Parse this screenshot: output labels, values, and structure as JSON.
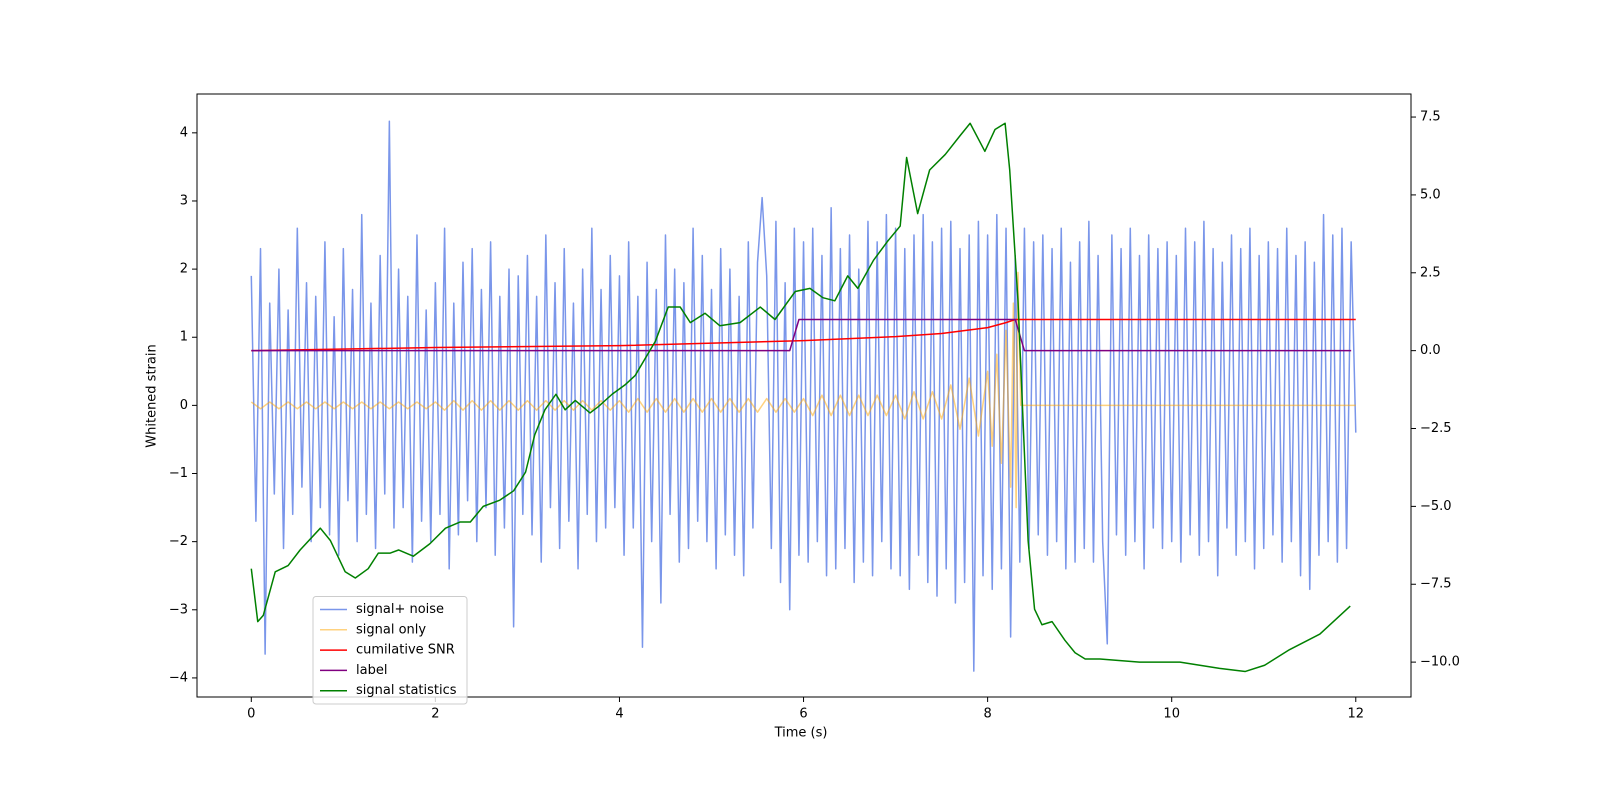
{
  "chart_data": {
    "type": "line",
    "xlabel": "Time (s)",
    "ylabel": "Whitened strain",
    "xlim": [
      -0.59,
      12.6
    ],
    "ylim": [
      -4.28,
      4.57
    ],
    "y2lim": [
      -11.12,
      8.24
    ],
    "xticks": [
      0,
      2,
      4,
      6,
      8,
      10,
      12
    ],
    "yticks": [
      {
        "value": -4,
        "label": "−4"
      },
      {
        "value": -3,
        "label": "−3"
      },
      {
        "value": -2,
        "label": "−2"
      },
      {
        "value": -1,
        "label": "−1"
      },
      0,
      1,
      2,
      3,
      4
    ],
    "y2ticks": [
      {
        "value": -10,
        "label": "−10.0"
      },
      {
        "value": -7.5,
        "label": "−7.5"
      },
      {
        "value": -5,
        "label": "−5.0"
      },
      {
        "value": -2.5,
        "label": "−2.5"
      },
      {
        "value": 0,
        "label": "0.0"
      },
      {
        "value": 2.5,
        "label": "2.5"
      },
      {
        "value": 5,
        "label": "5.0"
      },
      {
        "value": 7.5,
        "label": "7.5"
      }
    ],
    "grid": false,
    "legend": "lower left",
    "series": [
      {
        "name": "signal+ noise",
        "color": "royalblue",
        "opacity": 0.7,
        "axis": "y",
        "x": [
          0,
          0.05,
          0.1,
          0.15,
          0.2,
          0.25,
          0.3,
          0.35,
          0.4,
          0.45,
          0.5,
          0.55,
          0.6,
          0.65,
          0.7,
          0.75,
          0.8,
          0.85,
          0.9,
          0.95,
          1,
          1.05,
          1.1,
          1.15,
          1.2,
          1.25,
          1.3,
          1.35,
          1.4,
          1.45,
          1.5,
          1.55,
          1.6,
          1.65,
          1.7,
          1.75,
          1.8,
          1.85,
          1.9,
          1.95,
          2,
          2.05,
          2.1,
          2.15,
          2.2,
          2.25,
          2.3,
          2.35,
          2.4,
          2.45,
          2.5,
          2.55,
          2.6,
          2.65,
          2.7,
          2.75,
          2.8,
          2.85,
          2.9,
          2.95,
          3,
          3.05,
          3.1,
          3.15,
          3.2,
          3.25,
          3.3,
          3.35,
          3.4,
          3.45,
          3.5,
          3.55,
          3.6,
          3.65,
          3.7,
          3.75,
          3.8,
          3.85,
          3.9,
          3.95,
          4,
          4.05,
          4.1,
          4.15,
          4.2,
          4.25,
          4.3,
          4.35,
          4.4,
          4.45,
          4.5,
          4.55,
          4.6,
          4.65,
          4.7,
          4.75,
          4.8,
          4.85,
          4.9,
          4.95,
          5,
          5.05,
          5.1,
          5.15,
          5.2,
          5.25,
          5.3,
          5.35,
          5.4,
          5.45,
          5.5,
          5.55,
          5.6,
          5.65,
          5.7,
          5.75,
          5.8,
          5.85,
          5.9,
          5.95,
          6,
          6.05,
          6.1,
          6.15,
          6.2,
          6.25,
          6.3,
          6.35,
          6.4,
          6.45,
          6.5,
          6.55,
          6.6,
          6.65,
          6.7,
          6.75,
          6.8,
          6.85,
          6.9,
          6.95,
          7,
          7.05,
          7.1,
          7.15,
          7.2,
          7.25,
          7.3,
          7.35,
          7.4,
          7.45,
          7.5,
          7.55,
          7.6,
          7.65,
          7.7,
          7.75,
          7.8,
          7.85,
          7.9,
          7.95,
          8,
          8.05,
          8.1,
          8.15,
          8.2,
          8.25,
          8.3,
          8.35,
          8.4,
          8.45,
          8.5,
          8.55,
          8.6,
          8.65,
          8.7,
          8.75,
          8.8,
          8.85,
          8.9,
          8.95,
          9,
          9.05,
          9.1,
          9.15,
          9.2,
          9.25,
          9.3,
          9.35,
          9.4,
          9.45,
          9.5,
          9.55,
          9.6,
          9.65,
          9.7,
          9.75,
          9.8,
          9.85,
          9.9,
          9.95,
          10,
          10.05,
          10.1,
          10.15,
          10.2,
          10.25,
          10.3,
          10.35,
          10.4,
          10.45,
          10.5,
          10.55,
          10.6,
          10.65,
          10.7,
          10.75,
          10.8,
          10.85,
          10.9,
          10.95,
          11,
          11.05,
          11.1,
          11.15,
          11.2,
          11.25,
          11.3,
          11.35,
          11.4,
          11.45,
          11.5,
          11.55,
          11.6,
          11.65,
          11.7,
          11.75,
          11.8,
          11.85,
          11.9,
          11.95,
          12
        ],
        "values": [
          1.9,
          -1.7,
          2.3,
          -3.65,
          1.5,
          -1.3,
          2.0,
          -2.1,
          1.4,
          -1.6,
          2.6,
          -1.2,
          1.8,
          -2.0,
          1.6,
          -1.5,
          2.4,
          -1.9,
          1.3,
          -2.2,
          2.3,
          -1.4,
          1.7,
          -2.0,
          2.8,
          -1.6,
          1.5,
          -2.1,
          2.2,
          -1.3,
          4.17,
          -1.8,
          2.0,
          -1.5,
          1.6,
          -2.3,
          2.5,
          -1.7,
          1.4,
          -2.0,
          1.8,
          -1.6,
          2.6,
          -2.4,
          1.5,
          -1.9,
          2.1,
          -1.4,
          2.3,
          -2.0,
          1.7,
          -1.5,
          2.4,
          -2.2,
          1.6,
          -1.8,
          2.0,
          -3.25,
          1.9,
          -1.6,
          2.2,
          -1.9,
          1.6,
          -2.3,
          2.5,
          -1.5,
          1.8,
          -2.1,
          2.3,
          -1.7,
          1.5,
          -2.4,
          2.0,
          -1.6,
          2.6,
          -2.0,
          1.7,
          -1.8,
          2.2,
          -1.5,
          1.9,
          -2.2,
          2.4,
          -1.8,
          1.6,
          -3.55,
          2.1,
          -2.0,
          1.7,
          -2.9,
          2.5,
          -1.6,
          2.0,
          -2.3,
          1.8,
          -2.1,
          2.6,
          -1.7,
          2.2,
          -2.0,
          1.7,
          -2.4,
          2.3,
          -1.9,
          2.0,
          -2.2,
          1.6,
          -2.5,
          2.4,
          -1.8,
          2.1,
          3.05,
          1.9,
          -2.1,
          2.7,
          -2.6,
          1.8,
          -3.0,
          2.6,
          -2.2,
          2.4,
          -2.3,
          2.6,
          -2.0,
          2.2,
          -2.5,
          2.9,
          -2.4,
          2.3,
          -2.1,
          2.5,
          -2.6,
          2.0,
          -2.3,
          2.7,
          -2.5,
          2.4,
          -2.0,
          2.8,
          -2.4,
          2.6,
          -2.5,
          2.3,
          -2.7,
          2.5,
          -2.2,
          2.8,
          -2.6,
          2.4,
          -2.8,
          2.6,
          -2.4,
          2.7,
          -2.9,
          2.3,
          -2.6,
          2.5,
          -3.9,
          2.7,
          -2.5,
          2.5,
          -2.7,
          2.8,
          -2.4,
          2.6,
          -3.4,
          2.2,
          -2.3,
          2.6,
          -2.1,
          2.4,
          -1.9,
          2.5,
          -2.2,
          2.3,
          -2.0,
          2.6,
          -2.4,
          2.1,
          -2.3,
          2.4,
          -2.1,
          2.7,
          -2.3,
          2.2,
          -2.0,
          -3.5,
          2.5,
          -1.9,
          2.3,
          -2.2,
          2.6,
          -2.0,
          2.2,
          -2.4,
          2.5,
          -1.8,
          2.3,
          -2.1,
          2.4,
          -2.0,
          2.2,
          -2.3,
          2.6,
          -1.9,
          2.4,
          -2.2,
          2.7,
          -2.0,
          2.3,
          -2.5,
          2.1,
          -1.8,
          2.5,
          -2.2,
          2.3,
          -2.0,
          2.6,
          -2.4,
          2.2,
          -2.1,
          2.4,
          -1.9,
          2.3,
          -2.3,
          2.6,
          -2.0,
          2.2,
          -2.5,
          2.4,
          -2.7,
          2.1,
          -2.2,
          2.8,
          -2.0,
          2.5,
          -2.3,
          2.6,
          -2.1,
          2.4,
          -0.4
        ]
      },
      {
        "name": "signal only",
        "color": "orange",
        "opacity": 0.5,
        "axis": "y",
        "x": [
          0,
          0.1,
          0.2,
          0.3,
          0.4,
          0.5,
          0.6,
          0.7,
          0.8,
          0.9,
          1,
          1.1,
          1.2,
          1.3,
          1.4,
          1.5,
          1.6,
          1.7,
          1.8,
          1.9,
          2,
          2.1,
          2.2,
          2.3,
          2.4,
          2.5,
          2.6,
          2.7,
          2.8,
          2.9,
          3,
          3.1,
          3.2,
          3.3,
          3.4,
          3.5,
          3.6,
          3.7,
          3.8,
          3.9,
          4,
          4.1,
          4.2,
          4.3,
          4.4,
          4.5,
          4.6,
          4.7,
          4.8,
          4.9,
          5,
          5.1,
          5.2,
          5.3,
          5.4,
          5.5,
          5.6,
          5.7,
          5.8,
          5.9,
          6,
          6.1,
          6.2,
          6.3,
          6.4,
          6.5,
          6.6,
          6.7,
          6.8,
          6.9,
          7,
          7.1,
          7.2,
          7.3,
          7.4,
          7.5,
          7.6,
          7.7,
          7.8,
          7.9,
          8,
          8.05,
          8.1,
          8.15,
          8.2,
          8.25,
          8.28,
          8.31,
          8.33,
          8.36,
          12
        ],
        "values": [
          0.05,
          -0.05,
          0.05,
          -0.05,
          0.05,
          -0.05,
          0.05,
          -0.05,
          0.05,
          -0.05,
          0.05,
          -0.05,
          0.05,
          -0.05,
          0.05,
          -0.05,
          0.05,
          -0.05,
          0.05,
          -0.05,
          0.05,
          -0.07,
          0.07,
          -0.07,
          0.07,
          -0.07,
          0.07,
          -0.07,
          0.07,
          -0.07,
          0.07,
          -0.07,
          0.07,
          -0.07,
          0.07,
          -0.07,
          0.07,
          -0.07,
          0.07,
          -0.07,
          0.07,
          -0.1,
          0.1,
          -0.1,
          0.1,
          -0.1,
          0.1,
          -0.1,
          0.1,
          -0.1,
          0.1,
          -0.1,
          0.1,
          -0.1,
          0.1,
          -0.1,
          0.1,
          -0.1,
          0.1,
          -0.1,
          0.1,
          -0.15,
          0.15,
          -0.15,
          0.15,
          -0.15,
          0.15,
          -0.15,
          0.15,
          -0.15,
          0.15,
          -0.2,
          0.2,
          -0.2,
          0.2,
          -0.2,
          0.3,
          -0.35,
          0.4,
          -0.45,
          0.5,
          -0.6,
          0.75,
          -0.85,
          1.1,
          -1.2,
          1.5,
          -1.5,
          1.95,
          0,
          0
        ]
      },
      {
        "name": "cumilative SNR",
        "color": "red",
        "opacity": 1,
        "axis": "y2",
        "x": [
          0,
          2,
          4,
          6,
          7,
          7.5,
          8,
          8.2,
          8.3,
          12
        ],
        "values": [
          0,
          0.1,
          0.16,
          0.32,
          0.45,
          0.55,
          0.74,
          0.9,
          1.0,
          1.0
        ]
      },
      {
        "name": "label",
        "color": "purple",
        "opacity": 1,
        "axis": "y2",
        "x": [
          0,
          5.85,
          5.95,
          8.3,
          8.4,
          11.95
        ],
        "values": [
          0,
          0,
          1,
          1,
          0,
          0
        ]
      },
      {
        "name": "signal statistics",
        "color": "green",
        "opacity": 1,
        "axis": "y2",
        "x": [
          0,
          0.07,
          0.13,
          0.26,
          0.4,
          0.53,
          0.75,
          0.86,
          1.02,
          1.13,
          1.27,
          1.38,
          1.51,
          1.6,
          1.76,
          1.94,
          2.11,
          2.27,
          2.38,
          2.52,
          2.7,
          2.85,
          2.98,
          3.08,
          3.19,
          3.31,
          3.41,
          3.52,
          3.68,
          3.77,
          3.92,
          4.06,
          4.17,
          4.39,
          4.53,
          4.66,
          4.77,
          4.93,
          5.09,
          5.31,
          5.53,
          5.69,
          5.91,
          6.07,
          6.21,
          6.34,
          6.48,
          6.59,
          6.76,
          6.91,
          7.05,
          7.12,
          7.24,
          7.37,
          7.54,
          7.7,
          7.81,
          7.97,
          8.08,
          8.19,
          8.24,
          8.33,
          8.44,
          8.51,
          8.59,
          8.7,
          8.84,
          8.95,
          9.06,
          9.22,
          9.65,
          10.09,
          10.52,
          10.8,
          11.01,
          11.28,
          11.61,
          11.94
        ],
        "values": [
          -7.0,
          -8.7,
          -8.5,
          -7.1,
          -6.9,
          -6.4,
          -5.7,
          -6.1,
          -7.1,
          -7.3,
          -7.0,
          -6.5,
          -6.5,
          -6.4,
          -6.6,
          -6.2,
          -5.7,
          -5.5,
          -5.5,
          -5.0,
          -4.8,
          -4.5,
          -3.9,
          -2.7,
          -1.9,
          -1.4,
          -1.9,
          -1.6,
          -2.0,
          -1.8,
          -1.4,
          -1.1,
          -0.8,
          0.3,
          1.4,
          1.4,
          0.9,
          1.2,
          0.8,
          0.9,
          1.4,
          1.0,
          1.9,
          2.0,
          1.7,
          1.6,
          2.4,
          2.0,
          2.9,
          3.5,
          4.0,
          6.2,
          4.4,
          5.8,
          6.3,
          6.9,
          7.3,
          6.4,
          7.1,
          7.3,
          5.8,
          1.6,
          -6.1,
          -8.3,
          -8.8,
          -8.7,
          -9.3,
          -9.7,
          -9.9,
          -9.9,
          -10.0,
          -10.0,
          -10.2,
          -10.3,
          -10.1,
          -9.6,
          -9.1,
          -8.2
        ]
      }
    ]
  }
}
